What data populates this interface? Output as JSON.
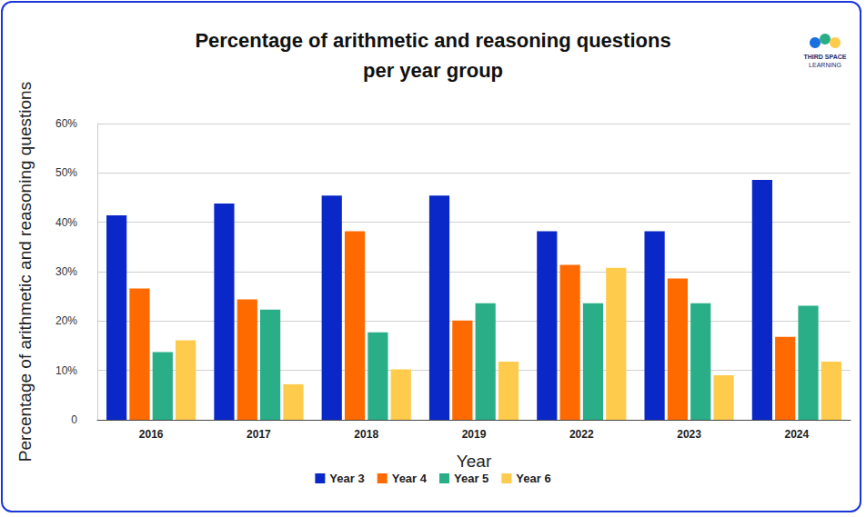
{
  "chart_data": {
    "type": "bar",
    "title": "Percentage of arithmetic and reasoning questions\nper year group",
    "x_label": "Year",
    "y_label": "Percentage of arithmetic and reasoning questions",
    "annotations": [
      "THIRD SPACE",
      "LEARNING"
    ],
    "categories": [
      "2016",
      "2017",
      "2018",
      "2019",
      "2022",
      "2023",
      "2024"
    ],
    "series": [
      {
        "name": "Year 3",
        "color": "#0a28c8",
        "values": [
          41.4,
          43.8,
          45.4,
          45.4,
          38.2,
          38.2,
          48.6
        ]
      },
      {
        "name": "Year 4",
        "color": "#ff6a00",
        "values": [
          26.6,
          24.4,
          38.2,
          20.1,
          31.4,
          28.6,
          16.8
        ]
      },
      {
        "name": "Year 5",
        "color": "#2aae88",
        "values": [
          13.7,
          22.3,
          17.7,
          23.6,
          23.6,
          23.6,
          23.1
        ]
      },
      {
        "name": "Year 6",
        "color": "#ffcb4c",
        "values": [
          16.1,
          7.2,
          10.2,
          11.8,
          30.8,
          9.0,
          11.8
        ]
      }
    ],
    "ylim": [
      0,
      60
    ],
    "yticks": [
      0,
      {
        "value": 10,
        "label": "10%"
      },
      {
        "value": 20,
        "label": "20%"
      },
      {
        "value": 30,
        "label": "30%"
      },
      {
        "value": 40,
        "label": "40%"
      },
      {
        "value": 50,
        "label": "50%"
      },
      {
        "value": 60,
        "label": "60%"
      }
    ],
    "grid": true,
    "legend": "bottom"
  }
}
